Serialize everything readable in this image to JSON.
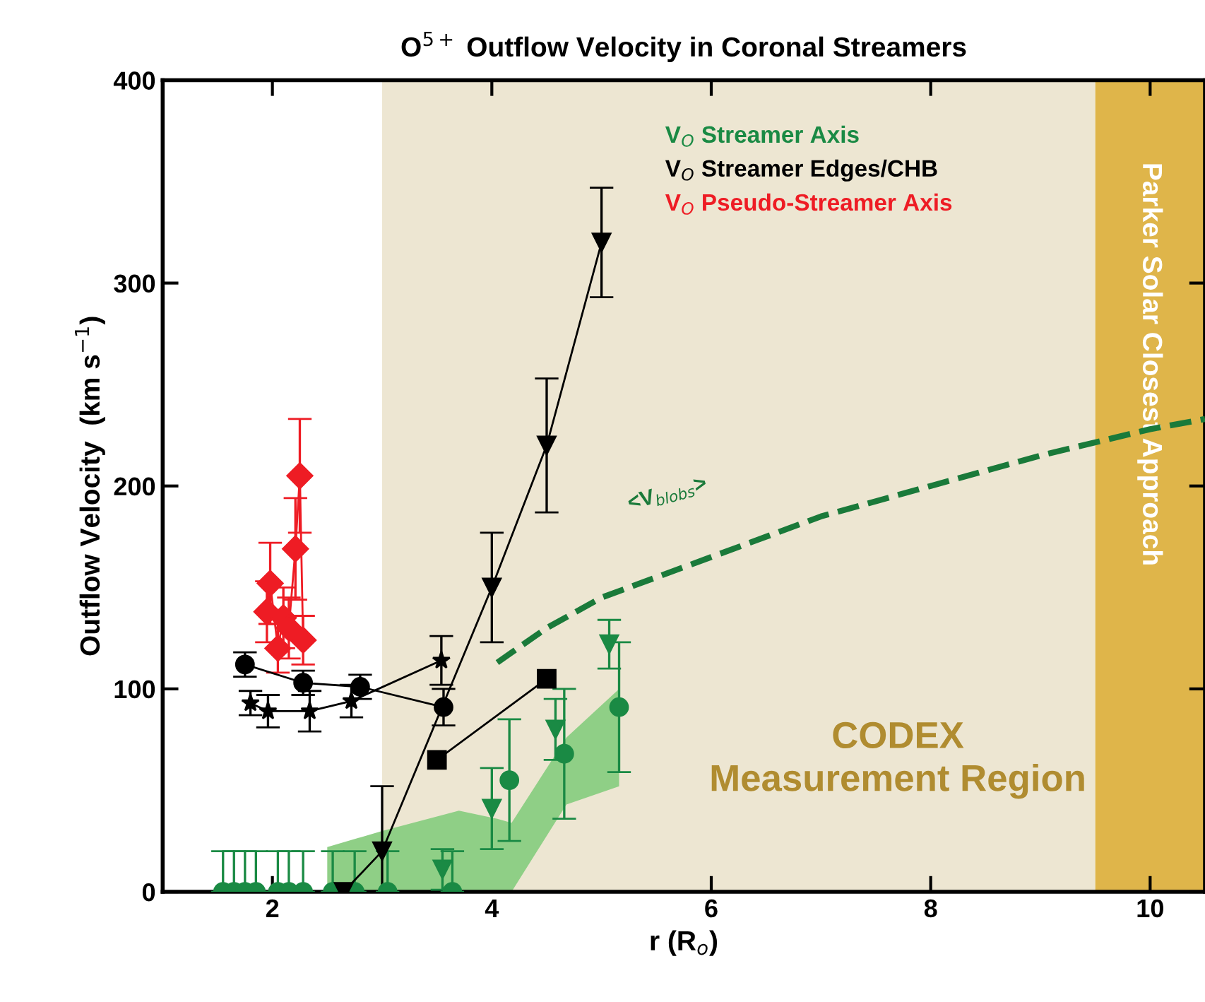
{
  "chart_data": {
    "type": "scatter",
    "title": "O$^{5+}$ Outflow Velocity in Coronal Streamers",
    "xlabel": "r (R$_{o}$)",
    "ylabel": "Outflow Velocity  (km s$^{−1}$)",
    "xlim": [
      1,
      10.5
    ],
    "ylim": [
      0,
      400
    ],
    "xticks": [
      2,
      4,
      6,
      8,
      10
    ],
    "yticks": [
      0,
      100,
      200,
      300,
      400
    ],
    "grid": false,
    "legend": "top",
    "bands": [
      {
        "axis": "x",
        "from": 3,
        "to": 9.5,
        "label": "CODEX\nMeasurement Region",
        "color": "#ede6d2"
      },
      {
        "axis": "x",
        "from": 9.5,
        "to": 10.5,
        "label": "Parker Solar Closest Approach",
        "color": "#dfb54a"
      }
    ],
    "annotations": [
      "<V$_{blobs}$>"
    ],
    "series": [
      {
        "type": "line",
        "color": "#8fcf86",
        "marker": "none",
        "x": [
          2.5,
          3.0,
          3.7,
          4.05,
          4.18,
          4.68,
          5.16
        ],
        "lower": [
          0,
          0,
          0,
          0,
          0,
          43,
          52
        ],
        "upper": [
          22,
          30,
          40,
          36,
          34,
          76,
          100
        ],
        "values": [
          null,
          null,
          null,
          null,
          null,
          null,
          null
        ]
      },
      {
        "type": "line",
        "color": "#1a7a3a",
        "line_style": "dashed",
        "marker": "none",
        "x": [
          4.05,
          4.5,
          5,
          6,
          7,
          8,
          9,
          10,
          10.5
        ],
        "values": [
          113,
          130,
          145,
          165,
          185,
          200,
          215,
          228,
          233
        ]
      },
      {
        "name": "V$_{O}$ Streamer Axis",
        "color": "#1a8a44",
        "marker": "circle",
        "x": [
          1.55,
          1.65,
          1.75,
          1.85,
          2.05,
          2.15,
          2.28,
          2.55,
          2.75,
          3.05,
          3.64,
          4.16,
          4.66,
          5.16
        ],
        "values": [
          0,
          0,
          0,
          0,
          0,
          0,
          0,
          0,
          0,
          0,
          0,
          55,
          68,
          91
        ],
        "errors": [
          [
            0,
            20
          ],
          [
            0,
            20
          ],
          [
            0,
            20
          ],
          [
            0,
            20
          ],
          [
            0,
            20
          ],
          [
            0,
            20
          ],
          [
            0,
            20
          ],
          [
            0,
            20
          ],
          [
            0,
            20
          ],
          [
            0,
            20
          ],
          [
            0,
            20
          ],
          30,
          32,
          32
        ]
      },
      {
        "type": "scatter",
        "color": "#1a8a44",
        "marker": "triangle",
        "x": [
          3.55,
          4.0,
          4.58,
          5.07
        ],
        "values": [
          11,
          41,
          80,
          122
        ],
        "errors": [
          10,
          20,
          15,
          12
        ]
      },
      {
        "name": "V$_{O}$ Streamer Edges/CHB",
        "type": "line",
        "color": "#000000",
        "marker": "circle",
        "x": [
          1.75,
          2.28,
          2.8,
          3.56
        ],
        "values": [
          112,
          103,
          101,
          91
        ],
        "errors": [
          6,
          6,
          6,
          9
        ]
      },
      {
        "type": "line",
        "color": "#000000",
        "marker": "star",
        "x": [
          1.8,
          1.96,
          2.34,
          2.72,
          3.54
        ],
        "values": [
          93,
          89,
          89,
          94,
          114
        ],
        "errors": [
          6,
          8,
          10,
          8,
          12
        ]
      },
      {
        "type": "line",
        "color": "#000000",
        "marker": "triangle",
        "x": [
          2.65,
          3.0,
          4.0,
          4.5,
          5.0
        ],
        "values": [
          0,
          20,
          150,
          220,
          320
        ],
        "errors": [
          null,
          32,
          27,
          33,
          27
        ]
      },
      {
        "type": "line",
        "color": "#000000",
        "marker": "square",
        "x": [
          3.5,
          4.5
        ],
        "values": [
          65,
          105
        ]
      },
      {
        "name": "V$_{O}$ Pseudo-Streamer Axis",
        "type": "line",
        "color": "#ee1c24",
        "marker": "diamond",
        "x": [
          1.95,
          1.98,
          2.05,
          2.1,
          2.15,
          2.21,
          2.25,
          2.28
        ],
        "values": [
          138,
          152,
          120,
          135,
          130,
          169,
          205,
          124
        ],
        "errors": [
          15,
          20,
          12,
          15,
          15,
          25,
          28,
          12
        ]
      }
    ]
  }
}
